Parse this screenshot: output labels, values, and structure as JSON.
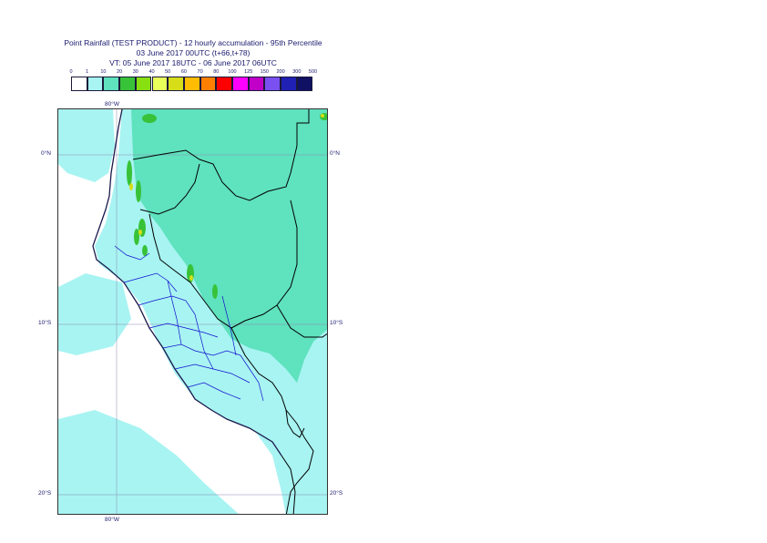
{
  "title": {
    "line1": "Point Rainfall (TEST PRODUCT) - 12 hourly accumulation - 95th Percentile",
    "line2": "03 June 2017 00UTC (t+66,t+78)",
    "line3": "VT: 05 June 2017 18UTC - 06 June 2017 06UTC"
  },
  "legend": {
    "labels": [
      "0",
      "1",
      "10",
      "20",
      "30",
      "40",
      "50",
      "60",
      "70",
      "80",
      "100",
      "125",
      "150",
      "200",
      "300",
      "500"
    ],
    "colors": [
      "#ffffff",
      "#a8f4f2",
      "#5fe2be",
      "#38c238",
      "#88e010",
      "#e9ff5a",
      "#d7de18",
      "#ffbc00",
      "#ff8000",
      "#ff0000",
      "#ff00ff",
      "#c000c8",
      "#7a50f0",
      "#2020b4",
      "#101064"
    ]
  },
  "axes": {
    "top_lon": "80°W",
    "bottom_lon": "80°W",
    "lat_0_left": "0°N",
    "lat_0_right": "0°N",
    "lat_10_left": "10°S",
    "lat_10_right": "10°S",
    "lat_20_left": "20°S",
    "lat_20_right": "20°S"
  },
  "map": {
    "ocean_color": "#ffffff",
    "land_color": "#a8f4f2",
    "wet_color": "#5fe2be",
    "heavy_color": "#38c238",
    "peak_color": "#d7de18",
    "coast_color": "#1a1a4e",
    "border_color": "#000000",
    "admin_color": "#1010d0"
  }
}
